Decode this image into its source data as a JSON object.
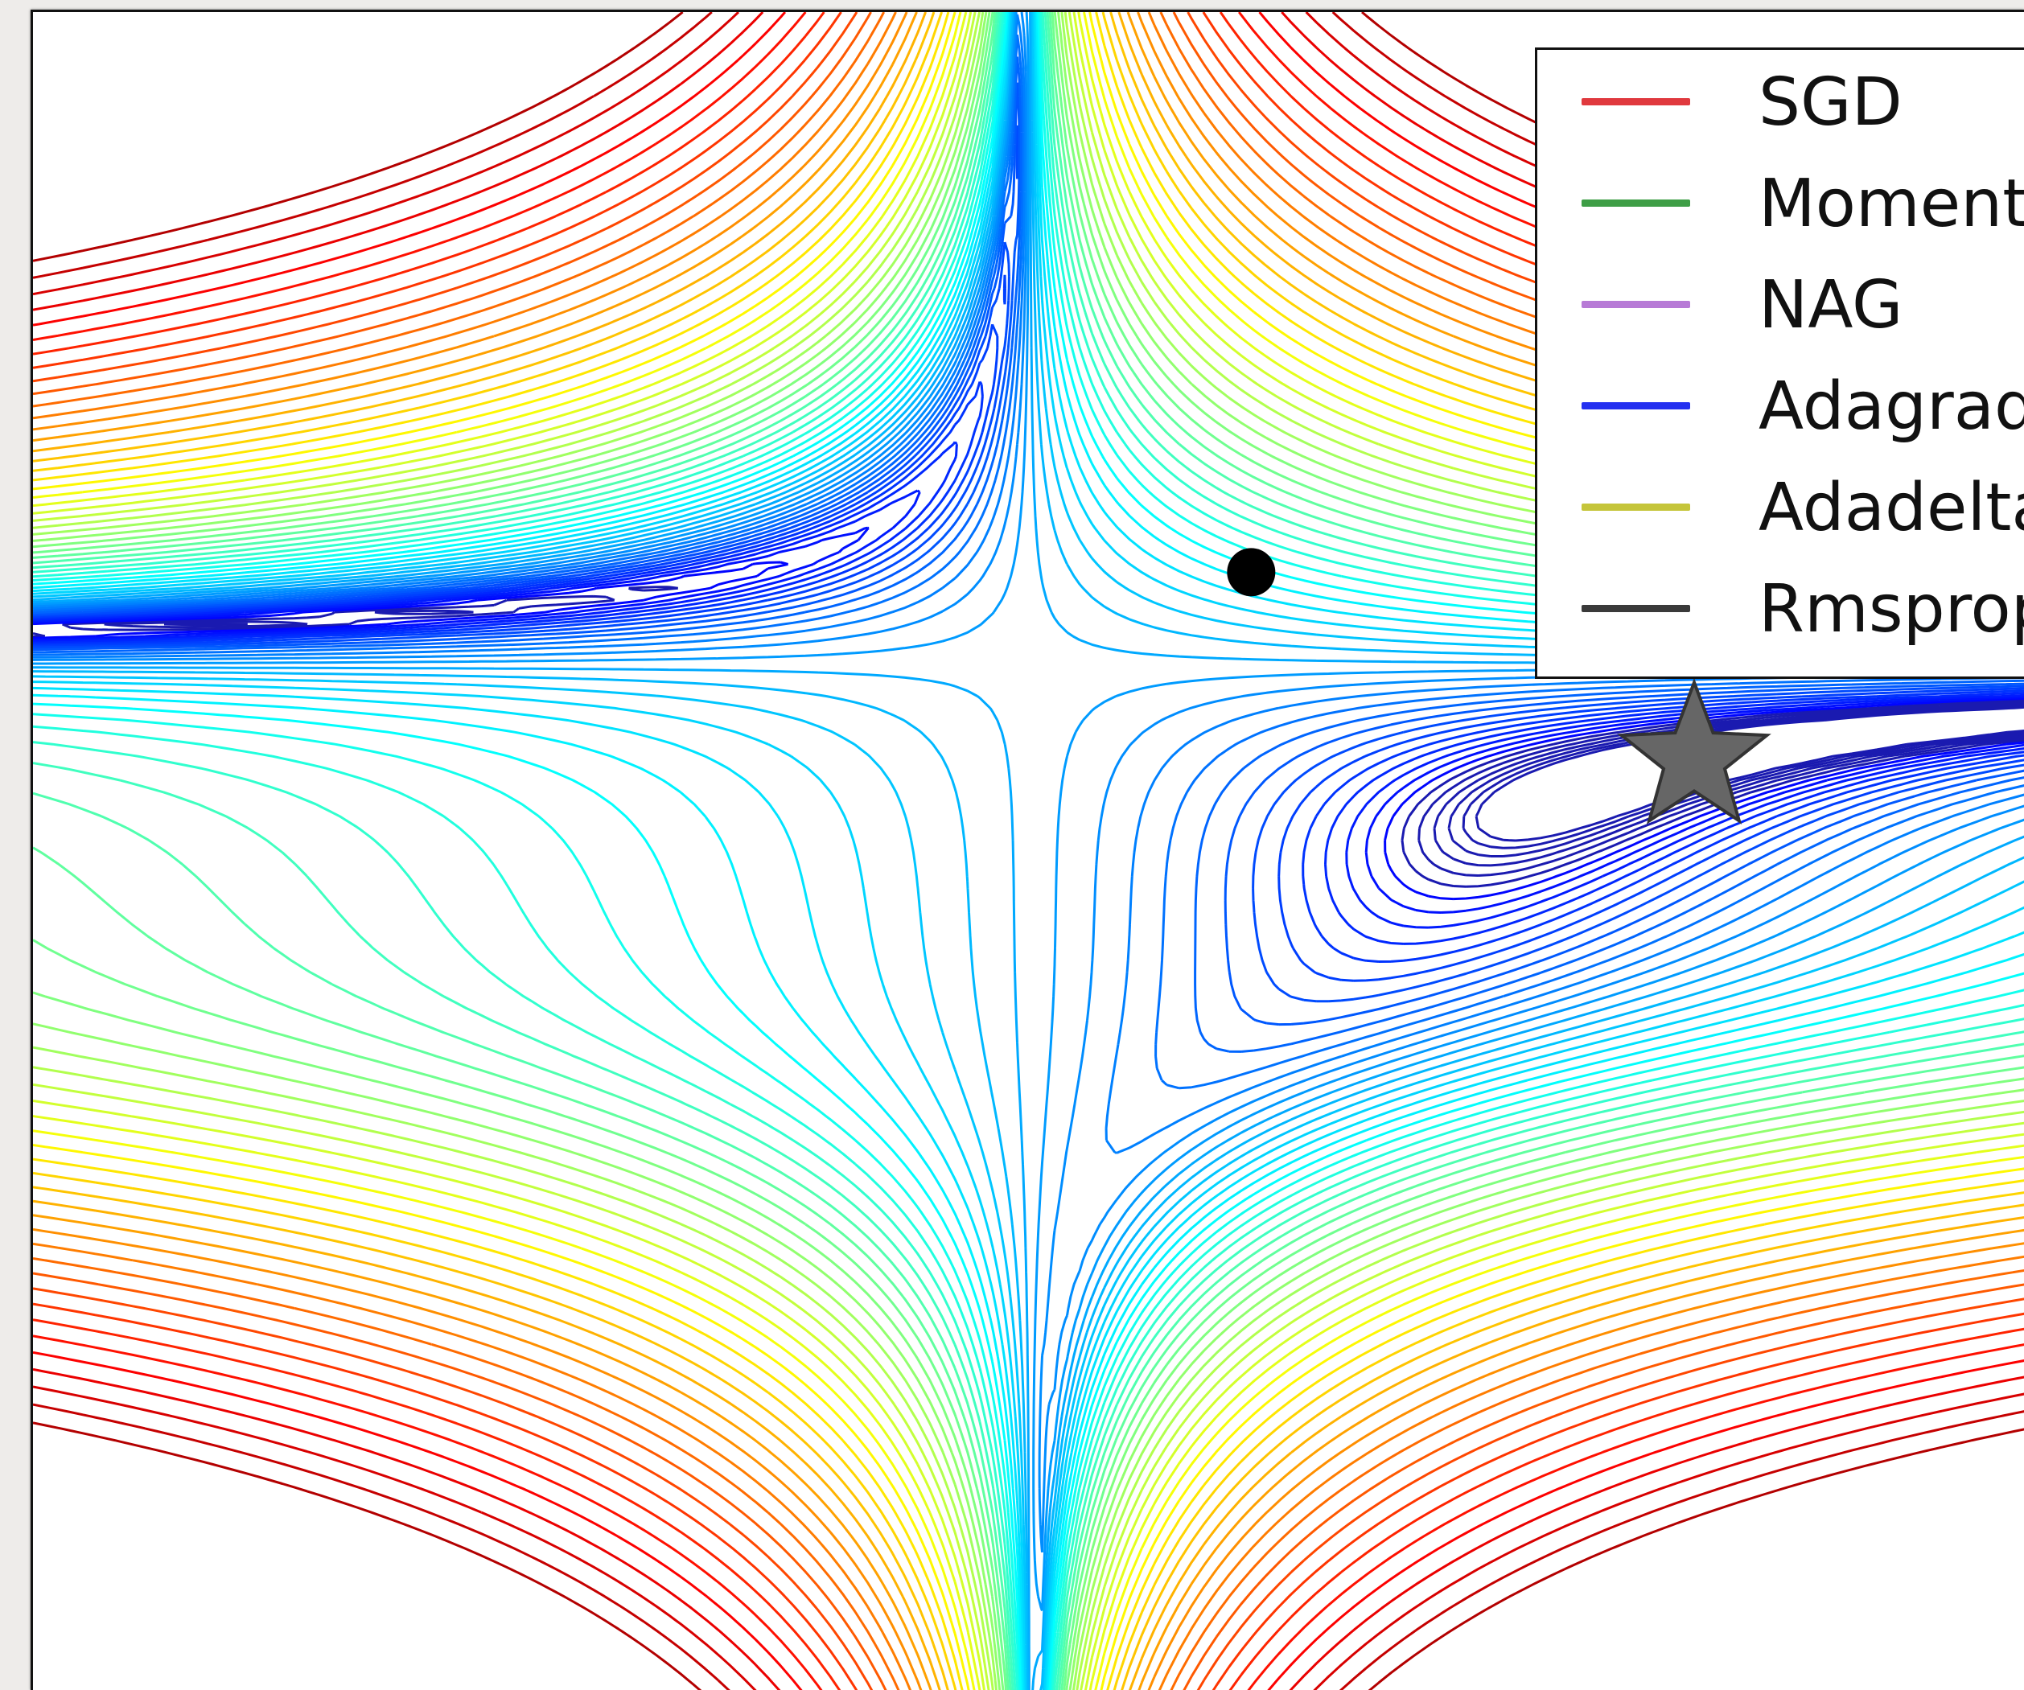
{
  "chart_data": {
    "type": "contour",
    "title": "",
    "xlabel": "",
    "ylabel": "",
    "xlim": [
      -4.5,
      4.5
    ],
    "ylim": [
      -4.5,
      4.5
    ],
    "function": "Beale",
    "axes_ticks_visible": false,
    "grid": false,
    "colormap": "jet",
    "contour_levels": 60,
    "start_point": {
      "x": 1.0,
      "y": 1.5,
      "marker": "circle",
      "color": "#000000"
    },
    "minimum": {
      "x": 3.0,
      "y": 0.5,
      "marker": "star",
      "color": "#666666"
    },
    "legend": {
      "placement": "top-right",
      "entries": [
        {
          "label": "SGD",
          "color": "#e0393e"
        },
        {
          "label": "Momentum",
          "color": "#3e9e46"
        },
        {
          "label": "NAG",
          "color": "#b77ad6"
        },
        {
          "label": "Adagrad",
          "color": "#2430f0"
        },
        {
          "label": "Adadelta",
          "color": "#c5c53a"
        },
        {
          "label": "Rmsprop",
          "color": "#3a3a3a"
        }
      ]
    }
  }
}
